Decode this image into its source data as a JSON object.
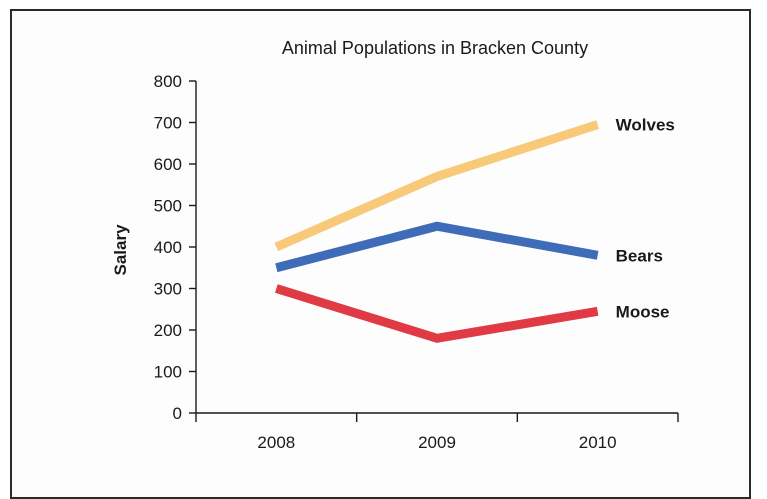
{
  "chart_data": {
    "type": "line",
    "title": "Animal Populations in Bracken County",
    "xlabel": "",
    "ylabel": "Salary",
    "categories": [
      "2008",
      "2009",
      "2010"
    ],
    "ylim": [
      0,
      800
    ],
    "yticks": [
      0,
      100,
      200,
      300,
      400,
      500,
      600,
      700,
      800
    ],
    "grid": false,
    "legend": "labels at line ends",
    "series": [
      {
        "name": "Wolves",
        "values": [
          400,
          570,
          695
        ],
        "color": "#f7c978"
      },
      {
        "name": "Bears",
        "values": [
          350,
          450,
          380
        ],
        "color": "#3f6cb8"
      },
      {
        "name": "Moose",
        "values": [
          300,
          180,
          245
        ],
        "color": "#e03a44"
      }
    ]
  }
}
